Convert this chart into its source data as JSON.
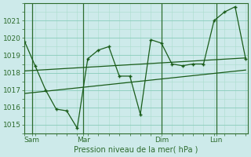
{
  "xlabel": "Pression niveau de la mer( hPa )",
  "bg_color": "#cdeaea",
  "grid_major_color": "#88ccbb",
  "grid_minor_color": "#aaddcc",
  "line_color": "#1a5c1a",
  "vline_color": "#2d6b2d",
  "ylim": [
    1014.5,
    1022.0
  ],
  "yticks": [
    1015,
    1016,
    1017,
    1018,
    1019,
    1020,
    1021
  ],
  "xlim": [
    0,
    10.6
  ],
  "xtick_labels": [
    "Sam",
    "Mar",
    "Dim",
    "Lun"
  ],
  "xtick_pos": [
    0.35,
    2.8,
    6.5,
    9.1
  ],
  "vline_pos": [
    0.35,
    2.8,
    6.5,
    9.1
  ],
  "s1x": [
    0.0,
    0.5,
    1.0,
    1.5,
    2.0,
    2.5,
    3.0,
    3.5,
    4.0,
    4.5,
    5.0,
    5.5,
    6.0,
    6.5,
    7.0,
    7.5,
    8.0,
    8.5,
    9.0,
    9.5,
    10.0,
    10.5
  ],
  "s1y": [
    1019.8,
    1018.4,
    1017.0,
    1015.9,
    1015.8,
    1014.8,
    1018.8,
    1019.3,
    1019.5,
    1017.8,
    1017.8,
    1015.6,
    1019.9,
    1019.7,
    1018.5,
    1018.4,
    1018.5,
    1018.5,
    1021.0,
    1021.5,
    1021.8,
    1018.8
  ],
  "s2x": [
    0.0,
    10.5
  ],
  "s2y": [
    1018.1,
    1018.85
  ],
  "s3x": [
    0.0,
    10.5
  ],
  "s3y": [
    1016.8,
    1018.15
  ]
}
